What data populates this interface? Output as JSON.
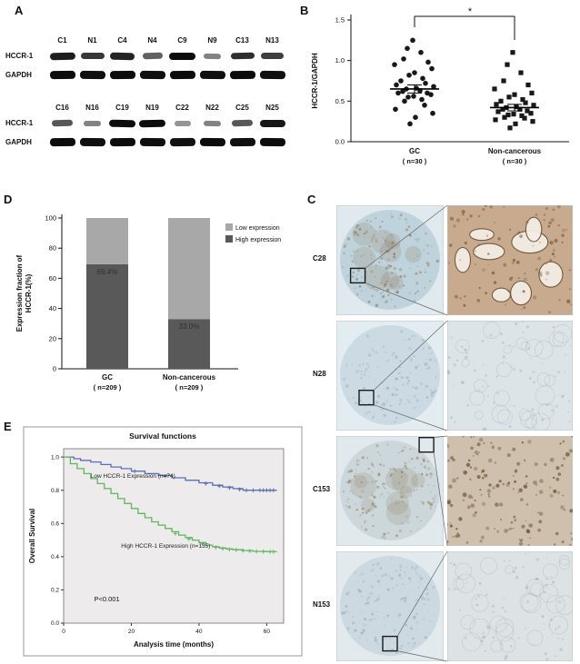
{
  "panels": {
    "a": "A",
    "b": "B",
    "c": "C",
    "d": "D",
    "e": "E"
  },
  "western": {
    "row_labels": [
      "HCCR-1",
      "GAPDH"
    ],
    "blots": [
      {
        "lanes": [
          "C1",
          "N1",
          "C4",
          "N4",
          "C9",
          "N9",
          "C13",
          "N13"
        ],
        "hccr1": [
          0.9,
          0.75,
          0.85,
          0.5,
          1.0,
          0.3,
          0.8,
          0.7
        ],
        "gapdh": [
          1,
          0.95,
          1,
          0.95,
          1,
          0.95,
          1,
          0.95
        ]
      },
      {
        "lanes": [
          "C16",
          "N16",
          "C19",
          "N19",
          "C22",
          "N22",
          "C25",
          "N25"
        ],
        "hccr1": [
          0.55,
          0.3,
          1.0,
          1.0,
          0.2,
          0.3,
          0.55,
          0.95
        ],
        "gapdh": [
          1,
          0.95,
          1,
          0.95,
          0.9,
          1,
          0.95,
          1
        ]
      }
    ]
  },
  "ihc": {
    "rows": [
      {
        "label": "C28",
        "base": "#dfe9ee",
        "core": "#bfd3dc",
        "accent": "#8a6848",
        "right_bg": "#c8ab8e",
        "right_nuclei": "#6f5134",
        "zoom_style": "glands",
        "blotches": true,
        "roi": [
          0.2,
          0.64
        ]
      },
      {
        "label": "N28",
        "base": "#e3ecf0",
        "core": "#ccdbe3",
        "accent": "#93a9b4",
        "right_bg": "#dde4e7",
        "right_nuclei": "#8fa2ac",
        "zoom_style": "faint",
        "blotches": false,
        "roi": [
          0.28,
          0.7
        ]
      },
      {
        "label": "C153",
        "base": "#e1e9ed",
        "core": "#ccd7dc",
        "accent": "#8c7857",
        "right_bg": "#cec0ac",
        "right_nuclei": "#6b5336",
        "zoom_style": "nuclei",
        "blotches": true,
        "roi": [
          0.84,
          0.08
        ]
      },
      {
        "label": "N153",
        "base": "#e2eaee",
        "core": "#ccd9e1",
        "accent": "#97aab5",
        "right_bg": "#dde2e4",
        "right_nuclei": "#91a3ad",
        "zoom_style": "faint",
        "blotches": false,
        "roi": [
          0.5,
          0.84
        ]
      }
    ]
  },
  "chart_data": [
    {
      "id": "scatter-b",
      "type": "scatter",
      "ylabel": "HCCR-1/GAPDH",
      "ylim": [
        0,
        1.5
      ],
      "yticks": [
        "0.0",
        "0.5",
        "1.0",
        "1.5"
      ],
      "significance": "*",
      "point_color": "#181818",
      "groups": [
        {
          "label": "GC",
          "sublabel": "( n=30 )",
          "marker": "circle",
          "mean": 0.65,
          "sem": 0.05,
          "values": [
            1.25,
            1.15,
            1.1,
            1.02,
            0.98,
            0.95,
            0.9,
            0.85,
            0.82,
            0.78,
            0.75,
            0.72,
            0.7,
            0.68,
            0.66,
            0.65,
            0.63,
            0.62,
            0.6,
            0.6,
            0.58,
            0.56,
            0.55,
            0.52,
            0.5,
            0.45,
            0.4,
            0.35,
            0.3,
            0.22
          ]
        },
        {
          "label": "Non-cancerous",
          "sublabel": "( n=30 )",
          "marker": "square",
          "mean": 0.42,
          "sem": 0.04,
          "values": [
            1.1,
            0.95,
            0.85,
            0.75,
            0.7,
            0.65,
            0.6,
            0.58,
            0.55,
            0.52,
            0.5,
            0.48,
            0.46,
            0.45,
            0.43,
            0.42,
            0.4,
            0.4,
            0.38,
            0.37,
            0.35,
            0.34,
            0.33,
            0.32,
            0.3,
            0.29,
            0.27,
            0.25,
            0.22,
            0.17
          ]
        }
      ]
    },
    {
      "id": "bar-d",
      "type": "bar",
      "stacked": true,
      "ylabel": [
        "Expression fraction of",
        "HCCR-1(%)"
      ],
      "ylim": [
        0,
        100
      ],
      "yticks": [
        0,
        20,
        40,
        60,
        80,
        100
      ],
      "categories": [
        "GC",
        "Non-cancerous"
      ],
      "cat_sublabels": [
        "( n=209 )",
        "( n=209 )"
      ],
      "series": [
        {
          "name": "High expression",
          "color": "#595959",
          "values": [
            69.4,
            33.0
          ],
          "value_labels": [
            "69.4%",
            "33.0%"
          ]
        },
        {
          "name": "Low expression",
          "color": "#a8a8a8",
          "values": [
            30.6,
            67.0
          ],
          "value_labels": [
            "",
            ""
          ]
        }
      ],
      "legend_order": [
        "Low expression",
        "High expression"
      ],
      "legend_colors": [
        "#a8a8a8",
        "#595959"
      ]
    },
    {
      "id": "km-e",
      "type": "line",
      "title": "Survival functions",
      "xlabel": "Analysis time (months)",
      "ylabel": "Overall Survival",
      "xlim": [
        0,
        65
      ],
      "ylim": [
        0,
        1.05
      ],
      "xticks": [
        0,
        20,
        40,
        60
      ],
      "yticks": [
        "0.0",
        "0.2",
        "0.4",
        "0.6",
        "0.8",
        "1.0"
      ],
      "annotation": "P<0.001",
      "plot_bg": "#edebec",
      "series": [
        {
          "name": "Low HCCR-1 Expression (n=74)",
          "color": "#5b6fb5",
          "steps": [
            [
              0,
              1.0
            ],
            [
              3,
              0.99
            ],
            [
              5,
              0.98
            ],
            [
              8,
              0.97
            ],
            [
              11,
              0.955
            ],
            [
              14,
              0.94
            ],
            [
              17,
              0.93
            ],
            [
              20,
              0.915
            ],
            [
              24,
              0.9
            ],
            [
              28,
              0.89
            ],
            [
              32,
              0.875
            ],
            [
              36,
              0.86
            ],
            [
              40,
              0.845
            ],
            [
              44,
              0.83
            ],
            [
              47,
              0.82
            ],
            [
              50,
              0.81
            ],
            [
              53,
              0.8
            ],
            [
              63,
              0.8
            ]
          ],
          "censors": [
            [
              21,
              0.915
            ],
            [
              30,
              0.885
            ],
            [
              42,
              0.84
            ],
            [
              46,
              0.825
            ],
            [
              49,
              0.815
            ],
            [
              52,
              0.805
            ],
            [
              54,
              0.8
            ],
            [
              56,
              0.8
            ],
            [
              58,
              0.8
            ],
            [
              59,
              0.8
            ],
            [
              60,
              0.8
            ],
            [
              61,
              0.8
            ],
            [
              62,
              0.8
            ]
          ],
          "label_pos": [
            8,
            0.875
          ]
        },
        {
          "name": "High HCCR-1 Expression (n=135)",
          "color": "#62b562",
          "steps": [
            [
              0,
              1.0
            ],
            [
              2,
              0.96
            ],
            [
              4,
              0.93
            ],
            [
              6,
              0.9
            ],
            [
              8,
              0.87
            ],
            [
              10,
              0.84
            ],
            [
              12,
              0.81
            ],
            [
              14,
              0.78
            ],
            [
              16,
              0.75
            ],
            [
              18,
              0.72
            ],
            [
              20,
              0.69
            ],
            [
              22,
              0.66
            ],
            [
              24,
              0.635
            ],
            [
              26,
              0.61
            ],
            [
              28,
              0.59
            ],
            [
              30,
              0.57
            ],
            [
              32,
              0.55
            ],
            [
              34,
              0.53
            ],
            [
              36,
              0.515
            ],
            [
              38,
              0.5
            ],
            [
              40,
              0.485
            ],
            [
              42,
              0.47
            ],
            [
              44,
              0.46
            ],
            [
              46,
              0.452
            ],
            [
              48,
              0.447
            ],
            [
              50,
              0.442
            ],
            [
              53,
              0.437
            ],
            [
              56,
              0.432
            ],
            [
              60,
              0.43
            ],
            [
              63,
              0.43
            ]
          ],
          "censors": [
            [
              33,
              0.54
            ],
            [
              37,
              0.507
            ],
            [
              41,
              0.477
            ],
            [
              45,
              0.456
            ],
            [
              47,
              0.449
            ],
            [
              49,
              0.444
            ],
            [
              51,
              0.44
            ],
            [
              53,
              0.437
            ],
            [
              55,
              0.434
            ],
            [
              57,
              0.432
            ],
            [
              59,
              0.431
            ],
            [
              61,
              0.43
            ],
            [
              62,
              0.43
            ]
          ],
          "label_pos": [
            17,
            0.455
          ]
        }
      ]
    }
  ]
}
